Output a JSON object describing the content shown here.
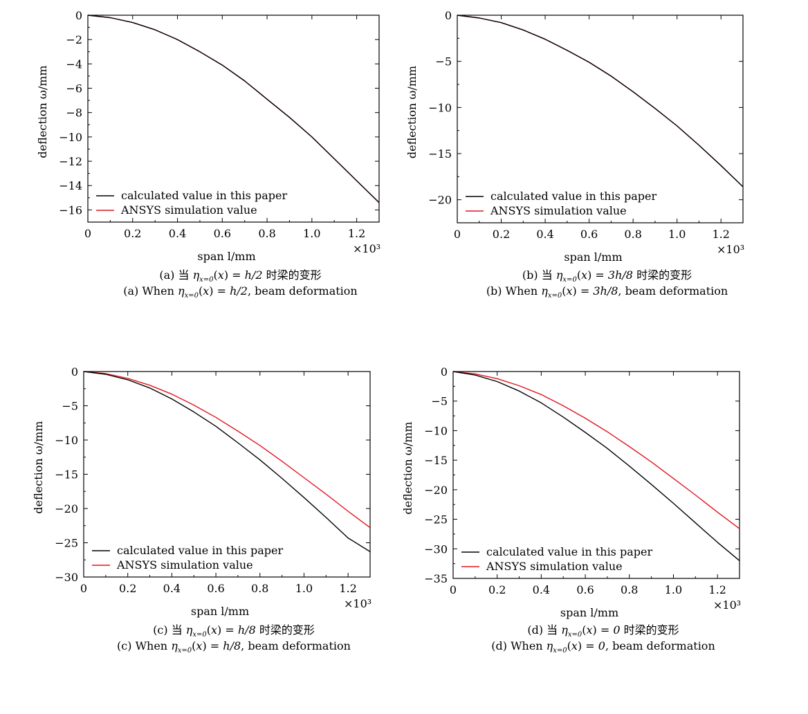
{
  "colors": {
    "calculated": "#000000",
    "ansys": "#e0141e"
  },
  "legend_labels": [
    "calculated value in this paper",
    "ANSYS simulation value"
  ],
  "chart_data": [
    {
      "type": "line",
      "id": "a",
      "xlabel": "span l/mm",
      "ylabel": "deflection ω/mm",
      "x_multiplier": "×10³",
      "xlim": [
        0,
        1.3
      ],
      "ylim": [
        -17,
        0
      ],
      "xticks": [
        0,
        0.2,
        0.4,
        0.6,
        0.8,
        1.0,
        1.2
      ],
      "xtick_labels": [
        "0",
        "0.2",
        "0.4",
        "0.6",
        "0.8",
        "1.0",
        "1.2"
      ],
      "yticks": [
        0,
        -2,
        -4,
        -6,
        -8,
        -10,
        -12,
        -14,
        -16
      ],
      "ytick_labels": [
        "0",
        "−2",
        "−4",
        "−6",
        "−8",
        "−10",
        "−12",
        "−14",
        "−16"
      ],
      "legend": "bottom-left",
      "grid": false,
      "series": [
        {
          "name": "calculated value in this paper",
          "x": [
            0,
            0.1,
            0.2,
            0.3,
            0.4,
            0.5,
            0.6,
            0.7,
            0.8,
            0.9,
            1.0,
            1.1,
            1.2,
            1.3
          ],
          "y": [
            0,
            -0.2,
            -0.6,
            -1.2,
            -2.0,
            -3.0,
            -4.1,
            -5.4,
            -6.9,
            -8.4,
            -10.0,
            -11.8,
            -13.6,
            -15.4
          ]
        },
        {
          "name": "ANSYS simulation value",
          "x": [
            0,
            0.1,
            0.2,
            0.3,
            0.4,
            0.5,
            0.6,
            0.7,
            0.8,
            0.9,
            1.0,
            1.1,
            1.2,
            1.3
          ],
          "y": [
            0,
            -0.2,
            -0.6,
            -1.2,
            -2.0,
            -3.0,
            -4.1,
            -5.4,
            -6.9,
            -8.4,
            -10.0,
            -11.8,
            -13.6,
            -15.4
          ]
        }
      ],
      "caption_cn": {
        "pre": "(a) 当 ",
        "mid": " 时梁的变形"
      },
      "caption_en": {
        "pre": "(a) When ",
        "post": ", beam deformation"
      },
      "condition": "h/2"
    },
    {
      "type": "line",
      "id": "b",
      "xlabel": "span l/mm",
      "ylabel": "deflection ω/mm",
      "x_multiplier": "×10³",
      "xlim": [
        0,
        1.3
      ],
      "ylim": [
        -22.5,
        0
      ],
      "xticks": [
        0,
        0.2,
        0.4,
        0.6,
        0.8,
        1.0,
        1.2
      ],
      "xtick_labels": [
        "0",
        "0.2",
        "0.4",
        "0.6",
        "0.8",
        "1.0",
        "1.2"
      ],
      "yticks": [
        0,
        -5,
        -10,
        -15,
        -20
      ],
      "ytick_labels": [
        "0",
        "−5",
        "−10",
        "−15",
        "−20"
      ],
      "legend": "bottom-left",
      "grid": false,
      "series": [
        {
          "name": "calculated value in this paper",
          "x": [
            0,
            0.1,
            0.2,
            0.3,
            0.4,
            0.5,
            0.6,
            0.7,
            0.8,
            0.9,
            1.0,
            1.1,
            1.2,
            1.3
          ],
          "y": [
            0,
            -0.3,
            -0.8,
            -1.6,
            -2.6,
            -3.8,
            -5.1,
            -6.6,
            -8.3,
            -10.1,
            -12.0,
            -14.1,
            -16.3,
            -18.6
          ]
        },
        {
          "name": "ANSYS simulation value",
          "x": [
            0,
            0.1,
            0.2,
            0.3,
            0.4,
            0.5,
            0.6,
            0.7,
            0.8,
            0.9,
            1.0,
            1.1,
            1.2,
            1.3
          ],
          "y": [
            0,
            -0.3,
            -0.8,
            -1.6,
            -2.6,
            -3.8,
            -5.1,
            -6.6,
            -8.3,
            -10.1,
            -12.0,
            -14.1,
            -16.3,
            -18.6
          ]
        }
      ],
      "caption_cn": {
        "pre": "(b) 当 ",
        "mid": " 时梁的变形"
      },
      "caption_en": {
        "pre": "(b) When ",
        "post": ", beam deformation"
      },
      "condition": "3h/8"
    },
    {
      "type": "line",
      "id": "c",
      "xlabel": "span l/mm",
      "ylabel": "deflection ω/mm",
      "x_multiplier": "×10³",
      "xlim": [
        0,
        1.3
      ],
      "ylim": [
        -30,
        0
      ],
      "xticks": [
        0,
        0.2,
        0.4,
        0.6,
        0.8,
        1.0,
        1.2
      ],
      "xtick_labels": [
        "0",
        "0.2",
        "0.4",
        "0.6",
        "0.8",
        "1.0",
        "1.2"
      ],
      "yticks": [
        0,
        -5,
        -10,
        -15,
        -20,
        -25,
        -30
      ],
      "ytick_labels": [
        "0",
        "−5",
        "−10",
        "−15",
        "−20",
        "−25",
        "−30"
      ],
      "legend": "bottom-left",
      "grid": false,
      "series": [
        {
          "name": "calculated value in this paper",
          "x": [
            0,
            0.1,
            0.2,
            0.3,
            0.4,
            0.5,
            0.6,
            0.7,
            0.8,
            0.9,
            1.0,
            1.1,
            1.2,
            1.3
          ],
          "y": [
            0,
            -0.4,
            -1.2,
            -2.4,
            -4.0,
            -5.9,
            -8.0,
            -10.4,
            -12.9,
            -15.6,
            -18.4,
            -21.3,
            -24.3,
            -26.3
          ]
        },
        {
          "name": "ANSYS simulation value",
          "x": [
            0,
            0.1,
            0.2,
            0.3,
            0.4,
            0.5,
            0.6,
            0.7,
            0.8,
            0.9,
            1.0,
            1.1,
            1.2,
            1.3
          ],
          "y": [
            0,
            -0.3,
            -1.0,
            -2.0,
            -3.3,
            -4.9,
            -6.7,
            -8.7,
            -10.8,
            -13.1,
            -15.5,
            -17.9,
            -20.4,
            -22.8
          ]
        }
      ],
      "caption_cn": {
        "pre": "(c) 当 ",
        "mid": " 时梁的变形"
      },
      "caption_en": {
        "pre": "(c) When ",
        "post": ", beam deformation"
      },
      "condition": "h/8"
    },
    {
      "type": "line",
      "id": "d",
      "xlabel": "span l/mm",
      "ylabel": "deflection ω/mm",
      "x_multiplier": "×10³",
      "xlim": [
        0,
        1.3
      ],
      "ylim": [
        -35,
        0
      ],
      "xticks": [
        0,
        0.2,
        0.4,
        0.6,
        0.8,
        1.0,
        1.2
      ],
      "xtick_labels": [
        "0",
        "0.2",
        "0.4",
        "0.6",
        "0.8",
        "1.0",
        "1.2"
      ],
      "yticks": [
        0,
        -5,
        -10,
        -15,
        -20,
        -25,
        -30,
        -35
      ],
      "ytick_labels": [
        "0",
        "−5",
        "−10",
        "−15",
        "−20",
        "−25",
        "−30",
        "−35"
      ],
      "legend": "bottom-left",
      "grid": false,
      "series": [
        {
          "name": "calculated value in this paper",
          "x": [
            0,
            0.1,
            0.2,
            0.3,
            0.4,
            0.5,
            0.6,
            0.7,
            0.8,
            0.9,
            1.0,
            1.1,
            1.2,
            1.3
          ],
          "y": [
            0,
            -0.6,
            -1.7,
            -3.3,
            -5.3,
            -7.7,
            -10.3,
            -13.0,
            -16.0,
            -19.1,
            -22.3,
            -25.6,
            -28.9,
            -32.0
          ]
        },
        {
          "name": "ANSYS simulation value",
          "x": [
            0,
            0.1,
            0.2,
            0.3,
            0.4,
            0.5,
            0.6,
            0.7,
            0.8,
            0.9,
            1.0,
            1.1,
            1.2,
            1.3
          ],
          "y": [
            0,
            -0.4,
            -1.2,
            -2.4,
            -3.9,
            -5.8,
            -7.9,
            -10.2,
            -12.7,
            -15.3,
            -18.1,
            -20.9,
            -23.8,
            -26.6
          ]
        }
      ],
      "caption_cn": {
        "pre": "(d) 当 ",
        "mid": " 时梁的变形"
      },
      "caption_en": {
        "pre": "(d) When ",
        "post": ", beam deformation"
      },
      "condition": "0"
    }
  ]
}
